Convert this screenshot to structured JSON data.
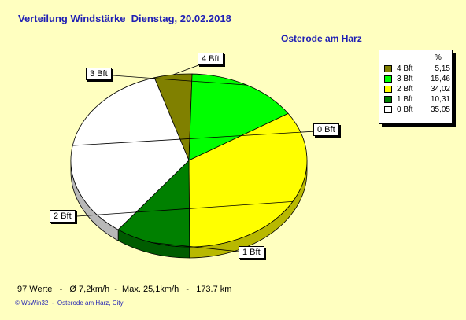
{
  "title": "Verteilung Windstärke  Dienstag, 20.02.2018",
  "subtitle": "Osterode am Harz",
  "legend_header": "%",
  "stats": "97 Werte   -   Ø 7,2km/h  -  Max. 25,1km/h   -   173.7 km",
  "copyright": "© WsWin32  -  Osterode am Harz, City",
  "chart_data": {
    "type": "pie",
    "title": "Verteilung Windstärke  Dienstag, 20.02.2018",
    "subtitle": "Osterode am Harz",
    "legend_placement": "top-right",
    "slices": [
      {
        "label": "4 Bft",
        "legend_value": "5,15",
        "value": 5.15,
        "color": "#808000"
      },
      {
        "label": "3 Bft",
        "legend_value": "15,46",
        "value": 15.46,
        "color": "#00ff00"
      },
      {
        "label": "2 Bft",
        "legend_value": "34,02",
        "value": 34.02,
        "color": "#ffff00"
      },
      {
        "label": "1 Bft",
        "legend_value": "10,31",
        "value": 10.31,
        "color": "#008000"
      },
      {
        "label": "0 Bft",
        "legend_value": "35,05",
        "value": 35.05,
        "color": "#ffffff"
      }
    ]
  }
}
